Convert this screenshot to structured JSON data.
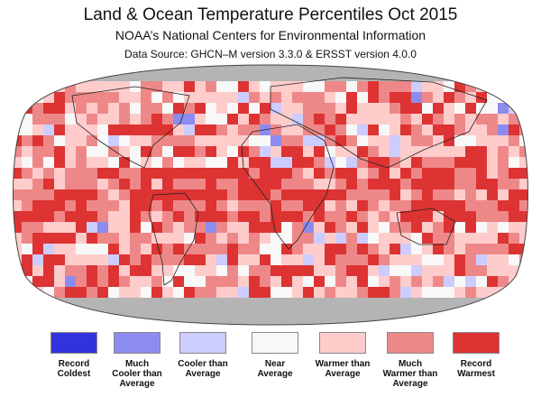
{
  "header": {
    "title": "Land & Ocean Temperature Percentiles Oct 2015",
    "subtitle": "NOAA’s National Centers for Environmental Information",
    "source": "Data Source: GHCN–M version 3.3.0 & ERSST version 4.0.0"
  },
  "legend": [
    {
      "lines": [
        "Record",
        "Coldest"
      ],
      "color": "#3333dd"
    },
    {
      "lines": [
        "Much",
        "Cooler than",
        "Average"
      ],
      "color": "#8c8cf0"
    },
    {
      "lines": [
        "Cooler than",
        "Average"
      ],
      "color": "#ccccff"
    },
    {
      "lines": [
        "Near",
        "Average"
      ],
      "color": "#f8f8f8"
    },
    {
      "lines": [
        "Warmer than",
        "Average"
      ],
      "color": "#ffcccc"
    },
    {
      "lines": [
        "Much",
        "Warmer than",
        "Average"
      ],
      "color": "#ee8888"
    },
    {
      "lines": [
        "Record",
        "Warmest"
      ],
      "color": "#dd3333"
    }
  ]
}
